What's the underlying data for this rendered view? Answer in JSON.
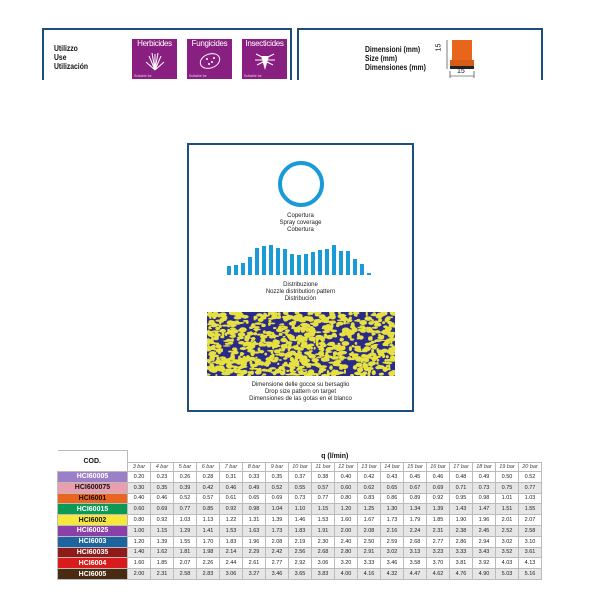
{
  "use": {
    "labels": [
      "Utilizzo",
      "Use",
      "Utilización"
    ],
    "items": [
      {
        "name": "Herbicides",
        "note": "Suitable for",
        "icon": "grass-icon"
      },
      {
        "name": "Fungicides",
        "note": "Suitable for",
        "icon": "leaf-spots-icon"
      },
      {
        "name": "Insecticides",
        "note": "Suitable for",
        "icon": "insect-icon"
      }
    ]
  },
  "size": {
    "labels": [
      "Dimensioni (mm)",
      "Size (mm)",
      "Dimensiones (mm)"
    ],
    "height": "15",
    "width": "15"
  },
  "card": {
    "coverage": [
      "Copertura",
      "Spray coverage",
      "Cobertura"
    ],
    "distribution": [
      "Distribuzione",
      "Nozzle distribution pattern",
      "Distribución"
    ],
    "distribution_bars": [
      9,
      10,
      12,
      18,
      27,
      29,
      30,
      27,
      26,
      21,
      20,
      21,
      23,
      25,
      26,
      30,
      24,
      24,
      16,
      11,
      2
    ],
    "drops": [
      "Dimensione delle gocce su bersaglio",
      "Drop size pattern on target",
      "Dimensiones de las gotas en el blanco"
    ],
    "colors": {
      "ring": "#1a9ad6",
      "drop_bg": "#2a2a8a",
      "drop_fg": "#e6e040"
    }
  },
  "table": {
    "cod": "COD.",
    "q": "q (l/min)",
    "pressures": [
      "3 bar",
      "4 bar",
      "5 bar",
      "6 bar",
      "7 bar",
      "8 bar",
      "9 bar",
      "10 bar",
      "11 bar",
      "12 bar",
      "13 bar",
      "14 bar",
      "15 bar",
      "16 bar",
      "17 bar",
      "18 bar",
      "19 bar",
      "20 bar"
    ],
    "rows": [
      {
        "code": "HCI60005",
        "color": "#9b80c8",
        "text": "#fff",
        "values": [
          "0.20",
          "0.23",
          "0.26",
          "0.28",
          "0.31",
          "0.33",
          "0.35",
          "0.37",
          "0.38",
          "0.40",
          "0.42",
          "0.43",
          "0.45",
          "0.46",
          "0.48",
          "0.49",
          "0.50",
          "0.52"
        ]
      },
      {
        "code": "HCI600075",
        "color": "#eb9fae",
        "text": "#111",
        "values": [
          "0.30",
          "0.35",
          "0.39",
          "0.42",
          "0.46",
          "0.49",
          "0.52",
          "0.55",
          "0.57",
          "0.60",
          "0.62",
          "0.65",
          "0.67",
          "0.69",
          "0.71",
          "0.73",
          "0.75",
          "0.77"
        ]
      },
      {
        "code": "HCI6001",
        "color": "#ea6620",
        "text": "#111",
        "values": [
          "0.40",
          "0.46",
          "0.52",
          "0.57",
          "0.61",
          "0.65",
          "0.69",
          "0.73",
          "0.77",
          "0.80",
          "0.83",
          "0.86",
          "0.89",
          "0.92",
          "0.95",
          "0.98",
          "1.01",
          "1.03"
        ]
      },
      {
        "code": "HCI60015",
        "color": "#0b9a56",
        "text": "#fff",
        "values": [
          "0.60",
          "0.69",
          "0.77",
          "0.85",
          "0.92",
          "0.98",
          "1.04",
          "1.10",
          "1.15",
          "1.20",
          "1.25",
          "1.30",
          "1.34",
          "1.39",
          "1.43",
          "1.47",
          "1.51",
          "1.55"
        ]
      },
      {
        "code": "HCI6002",
        "color": "#f5e83a",
        "text": "#111",
        "values": [
          "0.80",
          "0.92",
          "1.03",
          "1.13",
          "1.22",
          "1.31",
          "1.39",
          "1.46",
          "1.53",
          "1.60",
          "1.67",
          "1.73",
          "1.79",
          "1.85",
          "1.90",
          "1.96",
          "2.01",
          "2.07"
        ]
      },
      {
        "code": "HCI60025",
        "color": "#8a40a8",
        "text": "#fff",
        "values": [
          "1.00",
          "1.15",
          "1.29",
          "1.41",
          "1.53",
          "1.63",
          "1.73",
          "1.83",
          "1.91",
          "2.00",
          "2.08",
          "2.16",
          "2.24",
          "2.31",
          "2.38",
          "2.45",
          "2.52",
          "2.58"
        ]
      },
      {
        "code": "HCI6003",
        "color": "#1e64a0",
        "text": "#fff",
        "values": [
          "1.20",
          "1.39",
          "1.55",
          "1.70",
          "1.83",
          "1.96",
          "2.08",
          "2.19",
          "2.30",
          "2.40",
          "2.50",
          "2.59",
          "2.68",
          "2.77",
          "2.86",
          "2.94",
          "3.02",
          "3.10"
        ]
      },
      {
        "code": "HCI60035",
        "color": "#8e1a1a",
        "text": "#fff",
        "values": [
          "1.40",
          "1.62",
          "1.81",
          "1.98",
          "2.14",
          "2.29",
          "2.42",
          "2.56",
          "2.68",
          "2.80",
          "2.91",
          "3.02",
          "3.13",
          "3.23",
          "3.33",
          "3.43",
          "3.52",
          "3.61"
        ]
      },
      {
        "code": "HCI6004",
        "color": "#d81c1c",
        "text": "#fff",
        "values": [
          "1.60",
          "1.85",
          "2.07",
          "2.26",
          "2.44",
          "2.61",
          "2.77",
          "2.92",
          "3.06",
          "3.20",
          "3.33",
          "3.46",
          "3.58",
          "3.70",
          "3.81",
          "3.92",
          "4.03",
          "4.13"
        ]
      },
      {
        "code": "HCI6005",
        "color": "#4a2a10",
        "text": "#fff",
        "values": [
          "2.00",
          "2.31",
          "2.58",
          "2.83",
          "3.06",
          "3.27",
          "3.46",
          "3.65",
          "3.83",
          "4.00",
          "4.16",
          "4.32",
          "4.47",
          "4.62",
          "4.76",
          "4.90",
          "5.03",
          "5.16"
        ]
      }
    ]
  }
}
